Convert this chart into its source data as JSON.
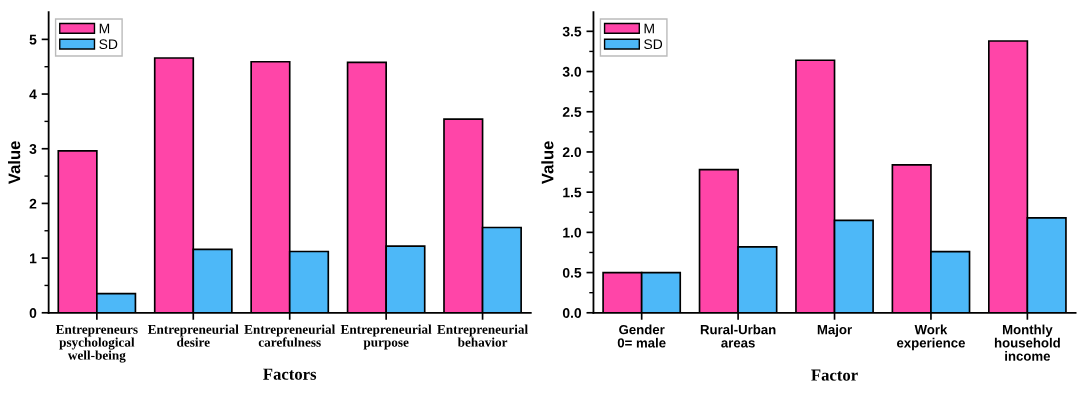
{
  "chart_data": [
    {
      "type": "bar",
      "xlabel": "Factors",
      "ylabel": "Value",
      "categories": [
        "Entrepreneurs\npsychological\nwell-being",
        "Entrepreneurial\ndesire",
        "Entrepreneurial\ncarefulness",
        "Entrepreneurial\npurpose",
        "Entrepreneurial\nbehavior"
      ],
      "series": [
        {
          "name": "M",
          "color": "#ff45a8",
          "values": [
            2.96,
            4.66,
            4.59,
            4.58,
            3.54
          ]
        },
        {
          "name": "SD",
          "color": "#4db8f8",
          "values": [
            0.35,
            1.16,
            1.12,
            1.22,
            1.56
          ]
        }
      ],
      "ylim": [
        0,
        5.5
      ],
      "yticks": [
        0,
        1,
        2,
        3,
        4,
        5
      ],
      "legend": "top left",
      "grid": false
    },
    {
      "type": "bar",
      "xlabel": "Factor",
      "ylabel": "Value",
      "categories": [
        "Gender\n0= male",
        "Rural-Urban\nareas",
        "Major",
        "Work\nexperience",
        "Monthly\nhousehold\nincome"
      ],
      "series": [
        {
          "name": "M",
          "color": "#ff45a8",
          "values": [
            0.5,
            1.78,
            3.14,
            1.84,
            3.38
          ]
        },
        {
          "name": "SD",
          "color": "#4db8f8",
          "values": [
            0.5,
            0.82,
            1.15,
            0.76,
            1.18
          ]
        }
      ],
      "ylim": [
        0,
        3.74
      ],
      "yticks": [
        {
          "value": 0,
          "label": "0.0"
        },
        {
          "value": 0.5,
          "label": "0.5"
        },
        {
          "value": 1,
          "label": "1.0"
        },
        {
          "value": 1.5,
          "label": "1.5"
        },
        {
          "value": 2,
          "label": "2.0"
        },
        {
          "value": 2.5,
          "label": "2.5"
        },
        {
          "value": 3,
          "label": "3.0"
        },
        {
          "value": 3.5,
          "label": "3.5"
        }
      ],
      "legend": "top left",
      "grid": false
    }
  ]
}
